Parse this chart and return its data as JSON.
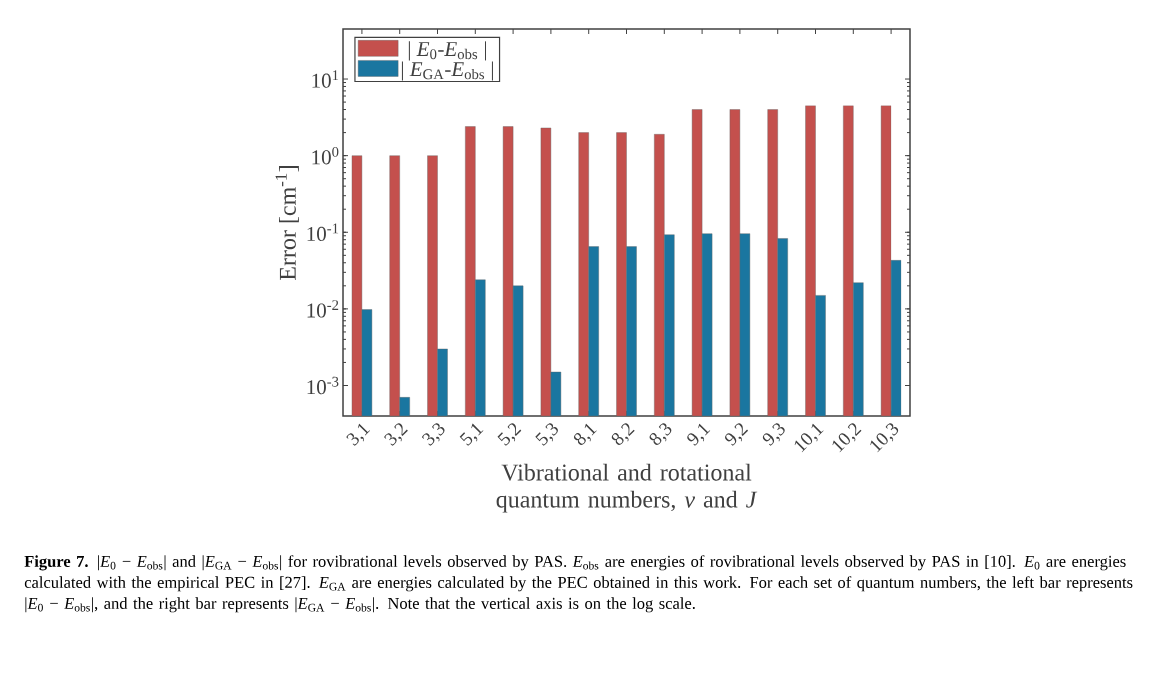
{
  "chart_data": {
    "type": "bar",
    "ylabel": "Error  [cm$^{-1}$]",
    "xlabel": "Vibrational and rotational quantum numbers, *v* and *J*",
    "categories": [
      "3,1",
      "3,2",
      "3,3",
      "5,1",
      "5,2",
      "5,3",
      "8,1",
      "8,2",
      "8,3",
      "9,1",
      "9,2",
      "9,3",
      "10,1",
      "10,2",
      "10,3"
    ],
    "series": [
      {
        "name": "| *E*$_{0}$-*E*$_{obs}$ |",
        "color": "#c4504d",
        "values": [
          1.0,
          1.0,
          1.0,
          2.4,
          2.4,
          2.3,
          2.0,
          2.0,
          1.9,
          4.0,
          4.0,
          4.0,
          4.5,
          4.5,
          4.5
        ]
      },
      {
        "name": "| *E*$_{GA}$-*E*$_{obs}$ |",
        "color": "#1a76a0",
        "values": [
          0.0098,
          0.0007,
          0.003,
          0.024,
          0.02,
          0.0015,
          0.065,
          0.065,
          0.093,
          0.096,
          0.096,
          0.083,
          0.015,
          0.022,
          0.043
        ]
      }
    ],
    "log": "y",
    "ylim": [
      0.0004,
      45
    ],
    "yticks": [
      {
        "value": 0.001,
        "label": "10$^{-3}$"
      },
      {
        "value": 0.01,
        "label": "10$^{-2}$"
      },
      {
        "value": 0.1,
        "label": "10$^{-1}$"
      },
      {
        "value": 1,
        "label": "10$^{0}$"
      },
      {
        "value": 10,
        "label": "10$^{1}$"
      }
    ],
    "legend": "top left",
    "grid": false,
    "annotations": [
      "**Figure 7.** |*E*$_{0}$ − *E*$_{obs}$| and |*E*$_{GA}$ − *E*$_{obs}$| for rovibrational levels observed by PAS. *E*$_{obs}$ are energies of rovibrational levels observed by PAS in [10]. *E*$_{0}$ are energies calculated with the empirical PEC in [27]. *E*$_{GA}$ are energies calculated by the PEC obtained in this work. For each set of quantum numbers, the left bar represents |*E*$_{0}$ − *E*$_{obs}$|, and the right bar represents |*E*$_{GA}$ − *E*$_{obs}$|. Note that the vertical axis is on the log scale."
    ]
  }
}
